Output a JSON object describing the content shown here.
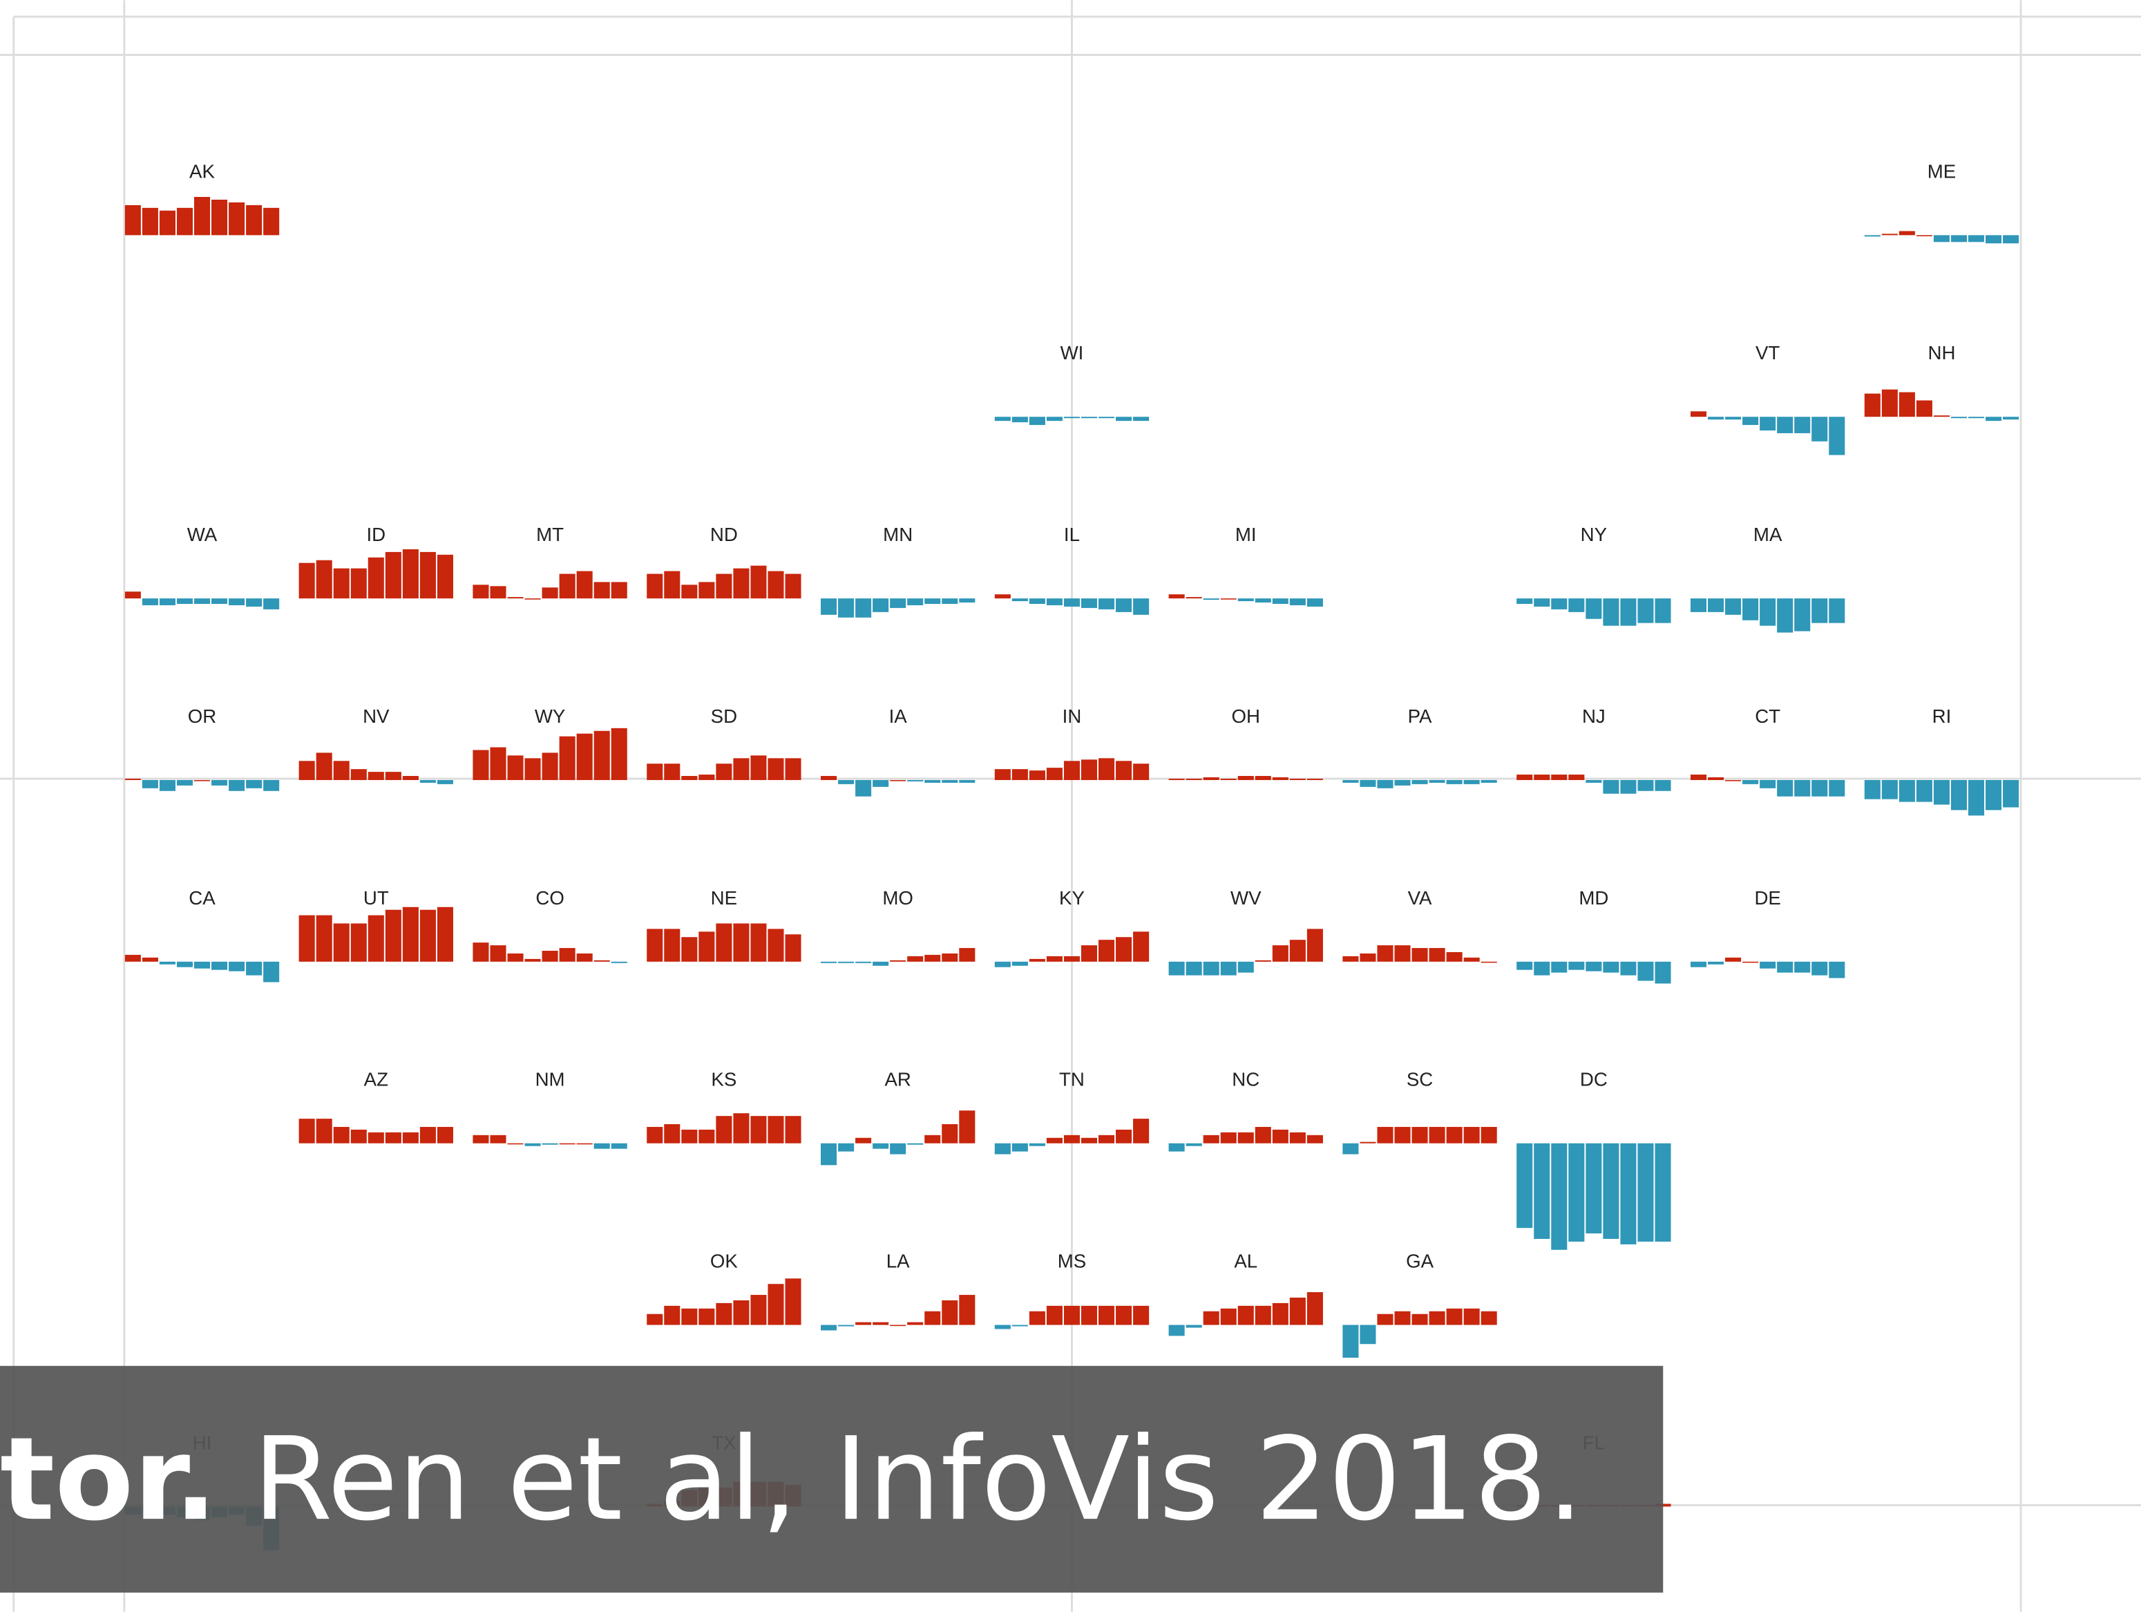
{
  "chart_data": {
    "type": "tile-bar",
    "positive_color": "#c8260d",
    "negative_color": "#2f97b8",
    "tiles": [
      {
        "label": "AK",
        "values": [
          22,
          20,
          18,
          20,
          28,
          26,
          24,
          22,
          20
        ]
      },
      {
        "label": "ME",
        "values": [
          -1,
          1,
          3,
          0,
          -5,
          -5,
          -5,
          -6,
          -6
        ]
      },
      {
        "label": "WI",
        "values": [
          -3,
          -4,
          -6,
          -3,
          -1,
          -1,
          -1,
          -3,
          -3
        ]
      },
      {
        "label": "VT",
        "values": [
          4,
          -2,
          -2,
          -6,
          -10,
          -12,
          -12,
          -18,
          -28
        ]
      },
      {
        "label": "NH",
        "values": [
          17,
          20,
          18,
          12,
          1,
          -1,
          -1,
          -3,
          -2
        ]
      },
      {
        "label": "WA",
        "values": [
          5,
          -5,
          -5,
          -4,
          -4,
          -4,
          -5,
          -6,
          -8
        ]
      },
      {
        "label": "ID",
        "values": [
          26,
          28,
          22,
          22,
          30,
          34,
          36,
          34,
          32
        ]
      },
      {
        "label": "MT",
        "values": [
          10,
          9,
          1,
          0,
          8,
          18,
          20,
          12,
          12
        ]
      },
      {
        "label": "ND",
        "values": [
          18,
          20,
          10,
          12,
          18,
          22,
          24,
          20,
          18
        ]
      },
      {
        "label": "MN",
        "values": [
          -12,
          -14,
          -14,
          -10,
          -7,
          -5,
          -4,
          -4,
          -3
        ]
      },
      {
        "label": "IL",
        "values": [
          3,
          -2,
          -4,
          -5,
          -6,
          -7,
          -8,
          -10,
          -12
        ]
      },
      {
        "label": "MI",
        "values": [
          3,
          1,
          -1,
          0,
          -2,
          -3,
          -4,
          -5,
          -6
        ]
      },
      {
        "label": "NY",
        "values": [
          -4,
          -6,
          -8,
          -10,
          -15,
          -20,
          -20,
          -18,
          -18
        ]
      },
      {
        "label": "MA",
        "values": [
          -10,
          -10,
          -12,
          -16,
          -20,
          -25,
          -24,
          -18,
          -18
        ]
      },
      {
        "label": "OR",
        "values": [
          1,
          -6,
          -8,
          -4,
          0,
          -4,
          -8,
          -6,
          -8
        ]
      },
      {
        "label": "NV",
        "values": [
          14,
          20,
          14,
          8,
          6,
          6,
          3,
          -2,
          -3
        ]
      },
      {
        "label": "WY",
        "values": [
          22,
          24,
          18,
          16,
          20,
          32,
          34,
          36,
          38
        ]
      },
      {
        "label": "SD",
        "values": [
          12,
          12,
          3,
          4,
          12,
          16,
          18,
          16,
          16
        ]
      },
      {
        "label": "IA",
        "values": [
          3,
          -3,
          -12,
          -5,
          0,
          -1,
          -2,
          -2,
          -2
        ]
      },
      {
        "label": "IN",
        "values": [
          8,
          8,
          7,
          9,
          14,
          15,
          16,
          14,
          12
        ]
      },
      {
        "label": "OH",
        "values": [
          1,
          1,
          2,
          1,
          3,
          3,
          2,
          1,
          1
        ]
      },
      {
        "label": "PA",
        "values": [
          -2,
          -5,
          -6,
          -4,
          -3,
          -2,
          -3,
          -3,
          -2
        ]
      },
      {
        "label": "NJ",
        "values": [
          4,
          4,
          4,
          4,
          -2,
          -10,
          -10,
          -8,
          -8
        ]
      },
      {
        "label": "CT",
        "values": [
          4,
          2,
          0,
          -3,
          -6,
          -12,
          -12,
          -12,
          -12
        ]
      },
      {
        "label": "RI",
        "values": [
          -14,
          -14,
          -16,
          -16,
          -18,
          -22,
          -26,
          -22,
          -20
        ]
      },
      {
        "label": "CA",
        "values": [
          5,
          3,
          -2,
          -4,
          -5,
          -6,
          -7,
          -10,
          -15
        ]
      },
      {
        "label": "UT",
        "values": [
          34,
          34,
          28,
          28,
          34,
          38,
          40,
          38,
          40
        ]
      },
      {
        "label": "CO",
        "values": [
          14,
          12,
          6,
          2,
          8,
          10,
          6,
          1,
          -1
        ]
      },
      {
        "label": "NE",
        "values": [
          24,
          24,
          18,
          22,
          28,
          28,
          28,
          24,
          20
        ]
      },
      {
        "label": "MO",
        "values": [
          -1,
          -1,
          -1,
          -3,
          1,
          4,
          5,
          6,
          10
        ]
      },
      {
        "label": "KY",
        "values": [
          -4,
          -3,
          2,
          4,
          4,
          12,
          16,
          18,
          22
        ]
      },
      {
        "label": "WV",
        "values": [
          -10,
          -10,
          -10,
          -10,
          -8,
          1,
          12,
          16,
          24
        ]
      },
      {
        "label": "VA",
        "values": [
          4,
          6,
          12,
          12,
          10,
          10,
          7,
          3,
          0
        ]
      },
      {
        "label": "MD",
        "values": [
          -6,
          -10,
          -8,
          -6,
          -7,
          -8,
          -10,
          -14,
          -16
        ]
      },
      {
        "label": "DE",
        "values": [
          -4,
          -2,
          3,
          0,
          -5,
          -8,
          -8,
          -10,
          -12
        ]
      },
      {
        "label": "AZ",
        "values": [
          18,
          18,
          12,
          10,
          8,
          8,
          8,
          12,
          12
        ]
      },
      {
        "label": "NM",
        "values": [
          6,
          6,
          0,
          -2,
          -1,
          0,
          0,
          -4,
          -4
        ]
      },
      {
        "label": "KS",
        "values": [
          12,
          14,
          10,
          10,
          20,
          22,
          20,
          20,
          20
        ]
      },
      {
        "label": "AR",
        "values": [
          -16,
          -6,
          4,
          -4,
          -8,
          -1,
          6,
          14,
          24
        ]
      },
      {
        "label": "TN",
        "values": [
          -8,
          -6,
          -2,
          4,
          6,
          4,
          6,
          10,
          18
        ]
      },
      {
        "label": "NC",
        "values": [
          -6,
          -2,
          6,
          8,
          8,
          12,
          10,
          8,
          6
        ]
      },
      {
        "label": "SC",
        "values": [
          -8,
          1,
          12,
          12,
          12,
          12,
          12,
          12,
          12
        ]
      },
      {
        "label": "DC",
        "values": [
          -62,
          -70,
          -78,
          -72,
          -66,
          -70,
          -74,
          -72,
          -72
        ]
      },
      {
        "label": "OK",
        "values": [
          8,
          14,
          12,
          12,
          16,
          18,
          22,
          30,
          34
        ]
      },
      {
        "label": "LA",
        "values": [
          -4,
          -1,
          2,
          2,
          0,
          2,
          10,
          18,
          22
        ]
      },
      {
        "label": "MS",
        "values": [
          -3,
          -1,
          10,
          14,
          14,
          14,
          14,
          14,
          14
        ]
      },
      {
        "label": "AL",
        "values": [
          -8,
          -2,
          10,
          12,
          14,
          14,
          16,
          20,
          24
        ]
      },
      {
        "label": "GA",
        "values": [
          -24,
          -14,
          8,
          10,
          8,
          10,
          12,
          12,
          10
        ]
      },
      {
        "label": "HI",
        "values": [
          -6,
          -4,
          -6,
          -8,
          -10,
          -8,
          -6,
          -14,
          -32
        ]
      },
      {
        "label": "TX",
        "values": [
          2,
          4,
          12,
          14,
          14,
          18,
          18,
          18,
          16
        ]
      },
      {
        "label": "FL",
        "values": [
          1,
          1,
          1,
          1,
          1,
          1,
          1,
          1,
          2
        ]
      }
    ]
  },
  "caption": {
    "bold": "tor.",
    "text": "Ren et al, InfoVis 2018."
  }
}
